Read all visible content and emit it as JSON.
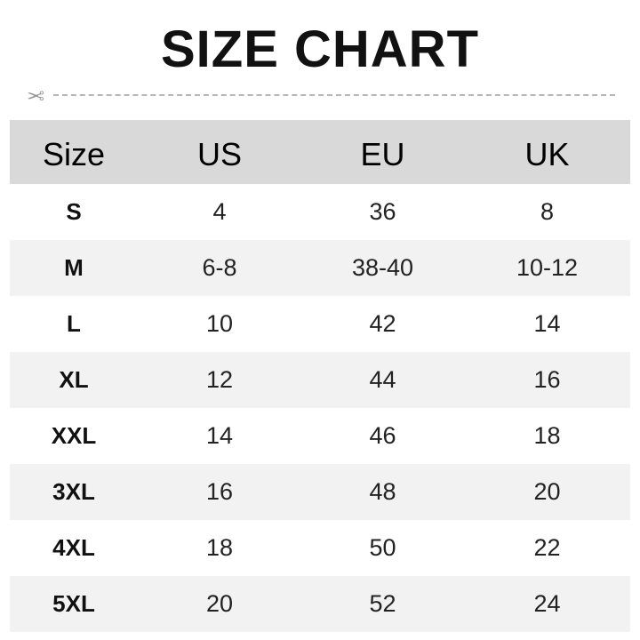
{
  "title": "SIZE CHART",
  "icons": {
    "cut_line": "scissors-icon"
  },
  "colors": {
    "header_bg": "#d9d9d9",
    "alt_row_bg": "#f2f2f2"
  },
  "table": {
    "headers": [
      "Size",
      "US",
      "EU",
      "UK"
    ],
    "rows": [
      [
        "S",
        "4",
        "36",
        "8"
      ],
      [
        "M",
        "6-8",
        "38-40",
        "10-12"
      ],
      [
        "L",
        "10",
        "42",
        "14"
      ],
      [
        "XL",
        "12",
        "44",
        "16"
      ],
      [
        "XXL",
        "14",
        "46",
        "18"
      ],
      [
        "3XL",
        "16",
        "48",
        "20"
      ],
      [
        "4XL",
        "18",
        "50",
        "22"
      ],
      [
        "5XL",
        "20",
        "52",
        "24"
      ]
    ]
  }
}
